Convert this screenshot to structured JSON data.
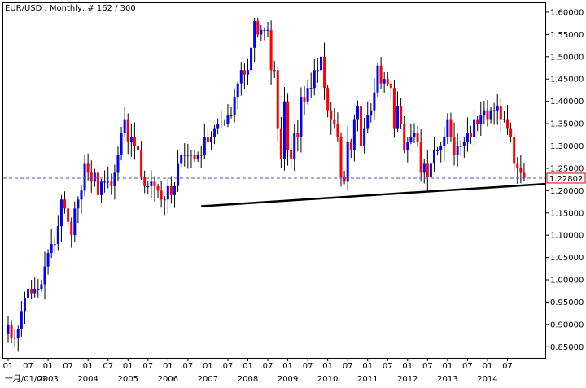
{
  "chart_data": {
    "type": "candlestick",
    "title": "EUR/USD , Monthly, # 162 / 300",
    "y_range": [
      0.825,
      1.62
    ],
    "y_ticks": [
      "1.60000",
      "1.55000",
      "1.50000",
      "1.45000",
      "1.40000",
      "1.35000",
      "1.30000",
      "1.25000",
      "1.20000",
      "1.15000",
      "1.10000",
      "1.05000",
      "1.00000",
      "0.95000",
      "0.90000",
      "0.85000"
    ],
    "current_price": "1.22802",
    "x_month_labels": [
      "01",
      "07"
    ],
    "x_year_labels": [
      "一月/01/02",
      "2003",
      "2004",
      "2005",
      "2006",
      "2007",
      "2008",
      "2009",
      "2010",
      "2011",
      "2012",
      "2013",
      "2014"
    ],
    "first_bar_month_index": 0,
    "colors": {
      "up": "#0000ff",
      "down": "#ff0000",
      "wick": "#000000",
      "current_line": "#5050cc",
      "trendline": "#000000",
      "frame": "#000000"
    },
    "trendline": {
      "from": {
        "month_index": 58,
        "price": 1.165
      },
      "to": {
        "month_index": 161,
        "price": 1.215
      }
    },
    "closes": [
      0.9,
      0.87,
      0.87,
      0.89,
      0.93,
      0.96,
      0.98,
      0.97,
      0.98,
      0.98,
      0.99,
      1.03,
      1.06,
      1.08,
      1.08,
      1.12,
      1.18,
      1.16,
      1.13,
      1.1,
      1.16,
      1.18,
      1.2,
      1.26,
      1.24,
      1.22,
      1.24,
      1.19,
      1.22,
      1.22,
      1.22,
      1.21,
      1.24,
      1.28,
      1.33,
      1.36,
      1.31,
      1.32,
      1.3,
      1.29,
      1.23,
      1.21,
      1.21,
      1.22,
      1.21,
      1.2,
      1.18,
      1.18,
      1.21,
      1.19,
      1.21,
      1.26,
      1.28,
      1.28,
      1.28,
      1.28,
      1.27,
      1.28,
      1.28,
      1.32,
      1.31,
      1.32,
      1.34,
      1.35,
      1.35,
      1.35,
      1.37,
      1.37,
      1.41,
      1.44,
      1.47,
      1.46,
      1.47,
      1.52,
      1.58,
      1.55,
      1.56,
      1.56,
      1.56,
      1.47,
      1.47,
      1.34,
      1.27,
      1.4,
      1.29,
      1.27,
      1.33,
      1.32,
      1.41,
      1.4,
      1.43,
      1.43,
      1.47,
      1.47,
      1.5,
      1.43,
      1.38,
      1.36,
      1.35,
      1.32,
      1.23,
      1.22,
      1.31,
      1.29,
      1.36,
      1.39,
      1.3,
      1.34,
      1.37,
      1.38,
      1.42,
      1.48,
      1.44,
      1.45,
      1.44,
      1.43,
      1.34,
      1.39,
      1.35,
      1.29,
      1.31,
      1.32,
      1.33,
      1.31,
      1.24,
      1.26,
      1.23,
      1.26,
      1.29,
      1.29,
      1.3,
      1.32,
      1.36,
      1.32,
      1.28,
      1.3,
      1.3,
      1.31,
      1.33,
      1.32,
      1.36,
      1.35,
      1.37,
      1.38,
      1.36,
      1.38,
      1.38,
      1.39,
      1.36,
      1.36,
      1.34,
      1.32,
      1.26,
      1.25,
      1.24,
      1.228
    ]
  }
}
